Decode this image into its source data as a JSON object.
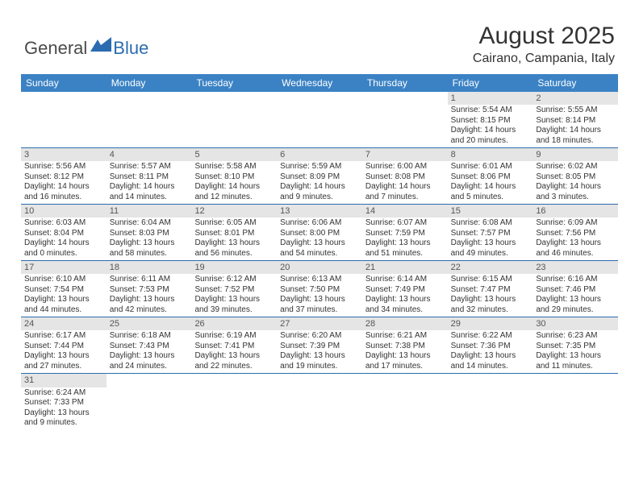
{
  "brand": {
    "part1": "General",
    "part2": "Blue"
  },
  "title": "August 2025",
  "location": "Cairano, Campania, Italy",
  "colors": {
    "header_bg": "#3b82c4",
    "header_text": "#ffffff",
    "row_border": "#2b6cb0",
    "daynum_bg": "#e5e5e5",
    "text": "#333333"
  },
  "dayNames": [
    "Sunday",
    "Monday",
    "Tuesday",
    "Wednesday",
    "Thursday",
    "Friday",
    "Saturday"
  ],
  "weeks": [
    [
      null,
      null,
      null,
      null,
      null,
      {
        "n": "1",
        "sunrise": "Sunrise: 5:54 AM",
        "sunset": "Sunset: 8:15 PM",
        "daylight": "Daylight: 14 hours and 20 minutes."
      },
      {
        "n": "2",
        "sunrise": "Sunrise: 5:55 AM",
        "sunset": "Sunset: 8:14 PM",
        "daylight": "Daylight: 14 hours and 18 minutes."
      }
    ],
    [
      {
        "n": "3",
        "sunrise": "Sunrise: 5:56 AM",
        "sunset": "Sunset: 8:12 PM",
        "daylight": "Daylight: 14 hours and 16 minutes."
      },
      {
        "n": "4",
        "sunrise": "Sunrise: 5:57 AM",
        "sunset": "Sunset: 8:11 PM",
        "daylight": "Daylight: 14 hours and 14 minutes."
      },
      {
        "n": "5",
        "sunrise": "Sunrise: 5:58 AM",
        "sunset": "Sunset: 8:10 PM",
        "daylight": "Daylight: 14 hours and 12 minutes."
      },
      {
        "n": "6",
        "sunrise": "Sunrise: 5:59 AM",
        "sunset": "Sunset: 8:09 PM",
        "daylight": "Daylight: 14 hours and 9 minutes."
      },
      {
        "n": "7",
        "sunrise": "Sunrise: 6:00 AM",
        "sunset": "Sunset: 8:08 PM",
        "daylight": "Daylight: 14 hours and 7 minutes."
      },
      {
        "n": "8",
        "sunrise": "Sunrise: 6:01 AM",
        "sunset": "Sunset: 8:06 PM",
        "daylight": "Daylight: 14 hours and 5 minutes."
      },
      {
        "n": "9",
        "sunrise": "Sunrise: 6:02 AM",
        "sunset": "Sunset: 8:05 PM",
        "daylight": "Daylight: 14 hours and 3 minutes."
      }
    ],
    [
      {
        "n": "10",
        "sunrise": "Sunrise: 6:03 AM",
        "sunset": "Sunset: 8:04 PM",
        "daylight": "Daylight: 14 hours and 0 minutes."
      },
      {
        "n": "11",
        "sunrise": "Sunrise: 6:04 AM",
        "sunset": "Sunset: 8:03 PM",
        "daylight": "Daylight: 13 hours and 58 minutes."
      },
      {
        "n": "12",
        "sunrise": "Sunrise: 6:05 AM",
        "sunset": "Sunset: 8:01 PM",
        "daylight": "Daylight: 13 hours and 56 minutes."
      },
      {
        "n": "13",
        "sunrise": "Sunrise: 6:06 AM",
        "sunset": "Sunset: 8:00 PM",
        "daylight": "Daylight: 13 hours and 54 minutes."
      },
      {
        "n": "14",
        "sunrise": "Sunrise: 6:07 AM",
        "sunset": "Sunset: 7:59 PM",
        "daylight": "Daylight: 13 hours and 51 minutes."
      },
      {
        "n": "15",
        "sunrise": "Sunrise: 6:08 AM",
        "sunset": "Sunset: 7:57 PM",
        "daylight": "Daylight: 13 hours and 49 minutes."
      },
      {
        "n": "16",
        "sunrise": "Sunrise: 6:09 AM",
        "sunset": "Sunset: 7:56 PM",
        "daylight": "Daylight: 13 hours and 46 minutes."
      }
    ],
    [
      {
        "n": "17",
        "sunrise": "Sunrise: 6:10 AM",
        "sunset": "Sunset: 7:54 PM",
        "daylight": "Daylight: 13 hours and 44 minutes."
      },
      {
        "n": "18",
        "sunrise": "Sunrise: 6:11 AM",
        "sunset": "Sunset: 7:53 PM",
        "daylight": "Daylight: 13 hours and 42 minutes."
      },
      {
        "n": "19",
        "sunrise": "Sunrise: 6:12 AM",
        "sunset": "Sunset: 7:52 PM",
        "daylight": "Daylight: 13 hours and 39 minutes."
      },
      {
        "n": "20",
        "sunrise": "Sunrise: 6:13 AM",
        "sunset": "Sunset: 7:50 PM",
        "daylight": "Daylight: 13 hours and 37 minutes."
      },
      {
        "n": "21",
        "sunrise": "Sunrise: 6:14 AM",
        "sunset": "Sunset: 7:49 PM",
        "daylight": "Daylight: 13 hours and 34 minutes."
      },
      {
        "n": "22",
        "sunrise": "Sunrise: 6:15 AM",
        "sunset": "Sunset: 7:47 PM",
        "daylight": "Daylight: 13 hours and 32 minutes."
      },
      {
        "n": "23",
        "sunrise": "Sunrise: 6:16 AM",
        "sunset": "Sunset: 7:46 PM",
        "daylight": "Daylight: 13 hours and 29 minutes."
      }
    ],
    [
      {
        "n": "24",
        "sunrise": "Sunrise: 6:17 AM",
        "sunset": "Sunset: 7:44 PM",
        "daylight": "Daylight: 13 hours and 27 minutes."
      },
      {
        "n": "25",
        "sunrise": "Sunrise: 6:18 AM",
        "sunset": "Sunset: 7:43 PM",
        "daylight": "Daylight: 13 hours and 24 minutes."
      },
      {
        "n": "26",
        "sunrise": "Sunrise: 6:19 AM",
        "sunset": "Sunset: 7:41 PM",
        "daylight": "Daylight: 13 hours and 22 minutes."
      },
      {
        "n": "27",
        "sunrise": "Sunrise: 6:20 AM",
        "sunset": "Sunset: 7:39 PM",
        "daylight": "Daylight: 13 hours and 19 minutes."
      },
      {
        "n": "28",
        "sunrise": "Sunrise: 6:21 AM",
        "sunset": "Sunset: 7:38 PM",
        "daylight": "Daylight: 13 hours and 17 minutes."
      },
      {
        "n": "29",
        "sunrise": "Sunrise: 6:22 AM",
        "sunset": "Sunset: 7:36 PM",
        "daylight": "Daylight: 13 hours and 14 minutes."
      },
      {
        "n": "30",
        "sunrise": "Sunrise: 6:23 AM",
        "sunset": "Sunset: 7:35 PM",
        "daylight": "Daylight: 13 hours and 11 minutes."
      }
    ],
    [
      {
        "n": "31",
        "sunrise": "Sunrise: 6:24 AM",
        "sunset": "Sunset: 7:33 PM",
        "daylight": "Daylight: 13 hours and 9 minutes."
      },
      null,
      null,
      null,
      null,
      null,
      null
    ]
  ]
}
